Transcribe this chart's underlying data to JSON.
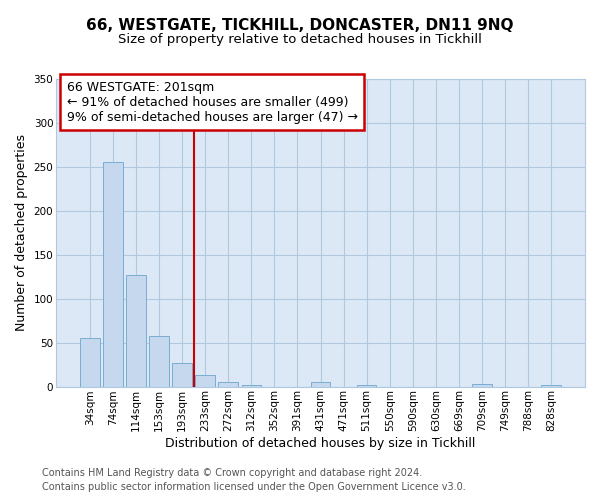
{
  "title_line1": "66, WESTGATE, TICKHILL, DONCASTER, DN11 9NQ",
  "title_line2": "Size of property relative to detached houses in Tickhill",
  "xlabel": "Distribution of detached houses by size in Tickhill",
  "ylabel": "Number of detached properties",
  "bar_labels": [
    "34sqm",
    "74sqm",
    "114sqm",
    "153sqm",
    "193sqm",
    "233sqm",
    "272sqm",
    "312sqm",
    "352sqm",
    "391sqm",
    "431sqm",
    "471sqm",
    "511sqm",
    "550sqm",
    "590sqm",
    "630sqm",
    "669sqm",
    "709sqm",
    "749sqm",
    "788sqm",
    "828sqm"
  ],
  "bar_values": [
    55,
    255,
    127,
    58,
    27,
    13,
    5,
    2,
    0,
    0,
    5,
    0,
    2,
    0,
    0,
    0,
    0,
    3,
    0,
    0,
    2
  ],
  "bar_color": "#c5d8ee",
  "bar_edgecolor": "#7aadd4",
  "vline_x": 4.5,
  "vline_label": "66 WESTGATE: 201sqm",
  "vline_color": "#cc0000",
  "annotation_lines": [
    "← 91% of detached houses are smaller (499)",
    "9% of semi-detached houses are larger (47) →"
  ],
  "ylim": [
    0,
    350
  ],
  "yticks": [
    0,
    50,
    100,
    150,
    200,
    250,
    300,
    350
  ],
  "footer_line1": "Contains HM Land Registry data © Crown copyright and database right 2024.",
  "footer_line2": "Contains public sector information licensed under the Open Government Licence v3.0.",
  "fig_bg_color": "#ffffff",
  "plot_bg_color": "#dce8f5",
  "grid_color": "#b0c8e0",
  "title_fontsize": 11,
  "subtitle_fontsize": 9.5,
  "axis_label_fontsize": 9,
  "tick_fontsize": 7.5,
  "footer_fontsize": 7,
  "ann_fontsize": 9
}
